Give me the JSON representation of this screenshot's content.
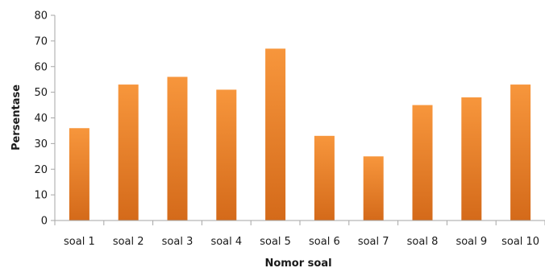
{
  "chart_data": {
    "type": "bar",
    "categories": [
      "soal 1",
      "soal 2",
      "soal 3",
      "soal 4",
      "soal 5",
      "soal 6",
      "soal 7",
      "soal 8",
      "soal 9",
      "soal 10"
    ],
    "values": [
      36,
      53,
      56,
      51,
      67,
      33,
      25,
      45,
      48,
      53
    ],
    "title": "",
    "xlabel": "Nomor soal",
    "ylabel": "Persentase",
    "ylim": [
      0,
      80
    ],
    "yticks": [
      0,
      10,
      20,
      30,
      40,
      50,
      60,
      70,
      80
    ],
    "grid": false,
    "legend": "none",
    "bar_color_top": "#F7963C",
    "bar_color_bottom": "#D46A1A",
    "axis_color": "#A6A6A6"
  }
}
